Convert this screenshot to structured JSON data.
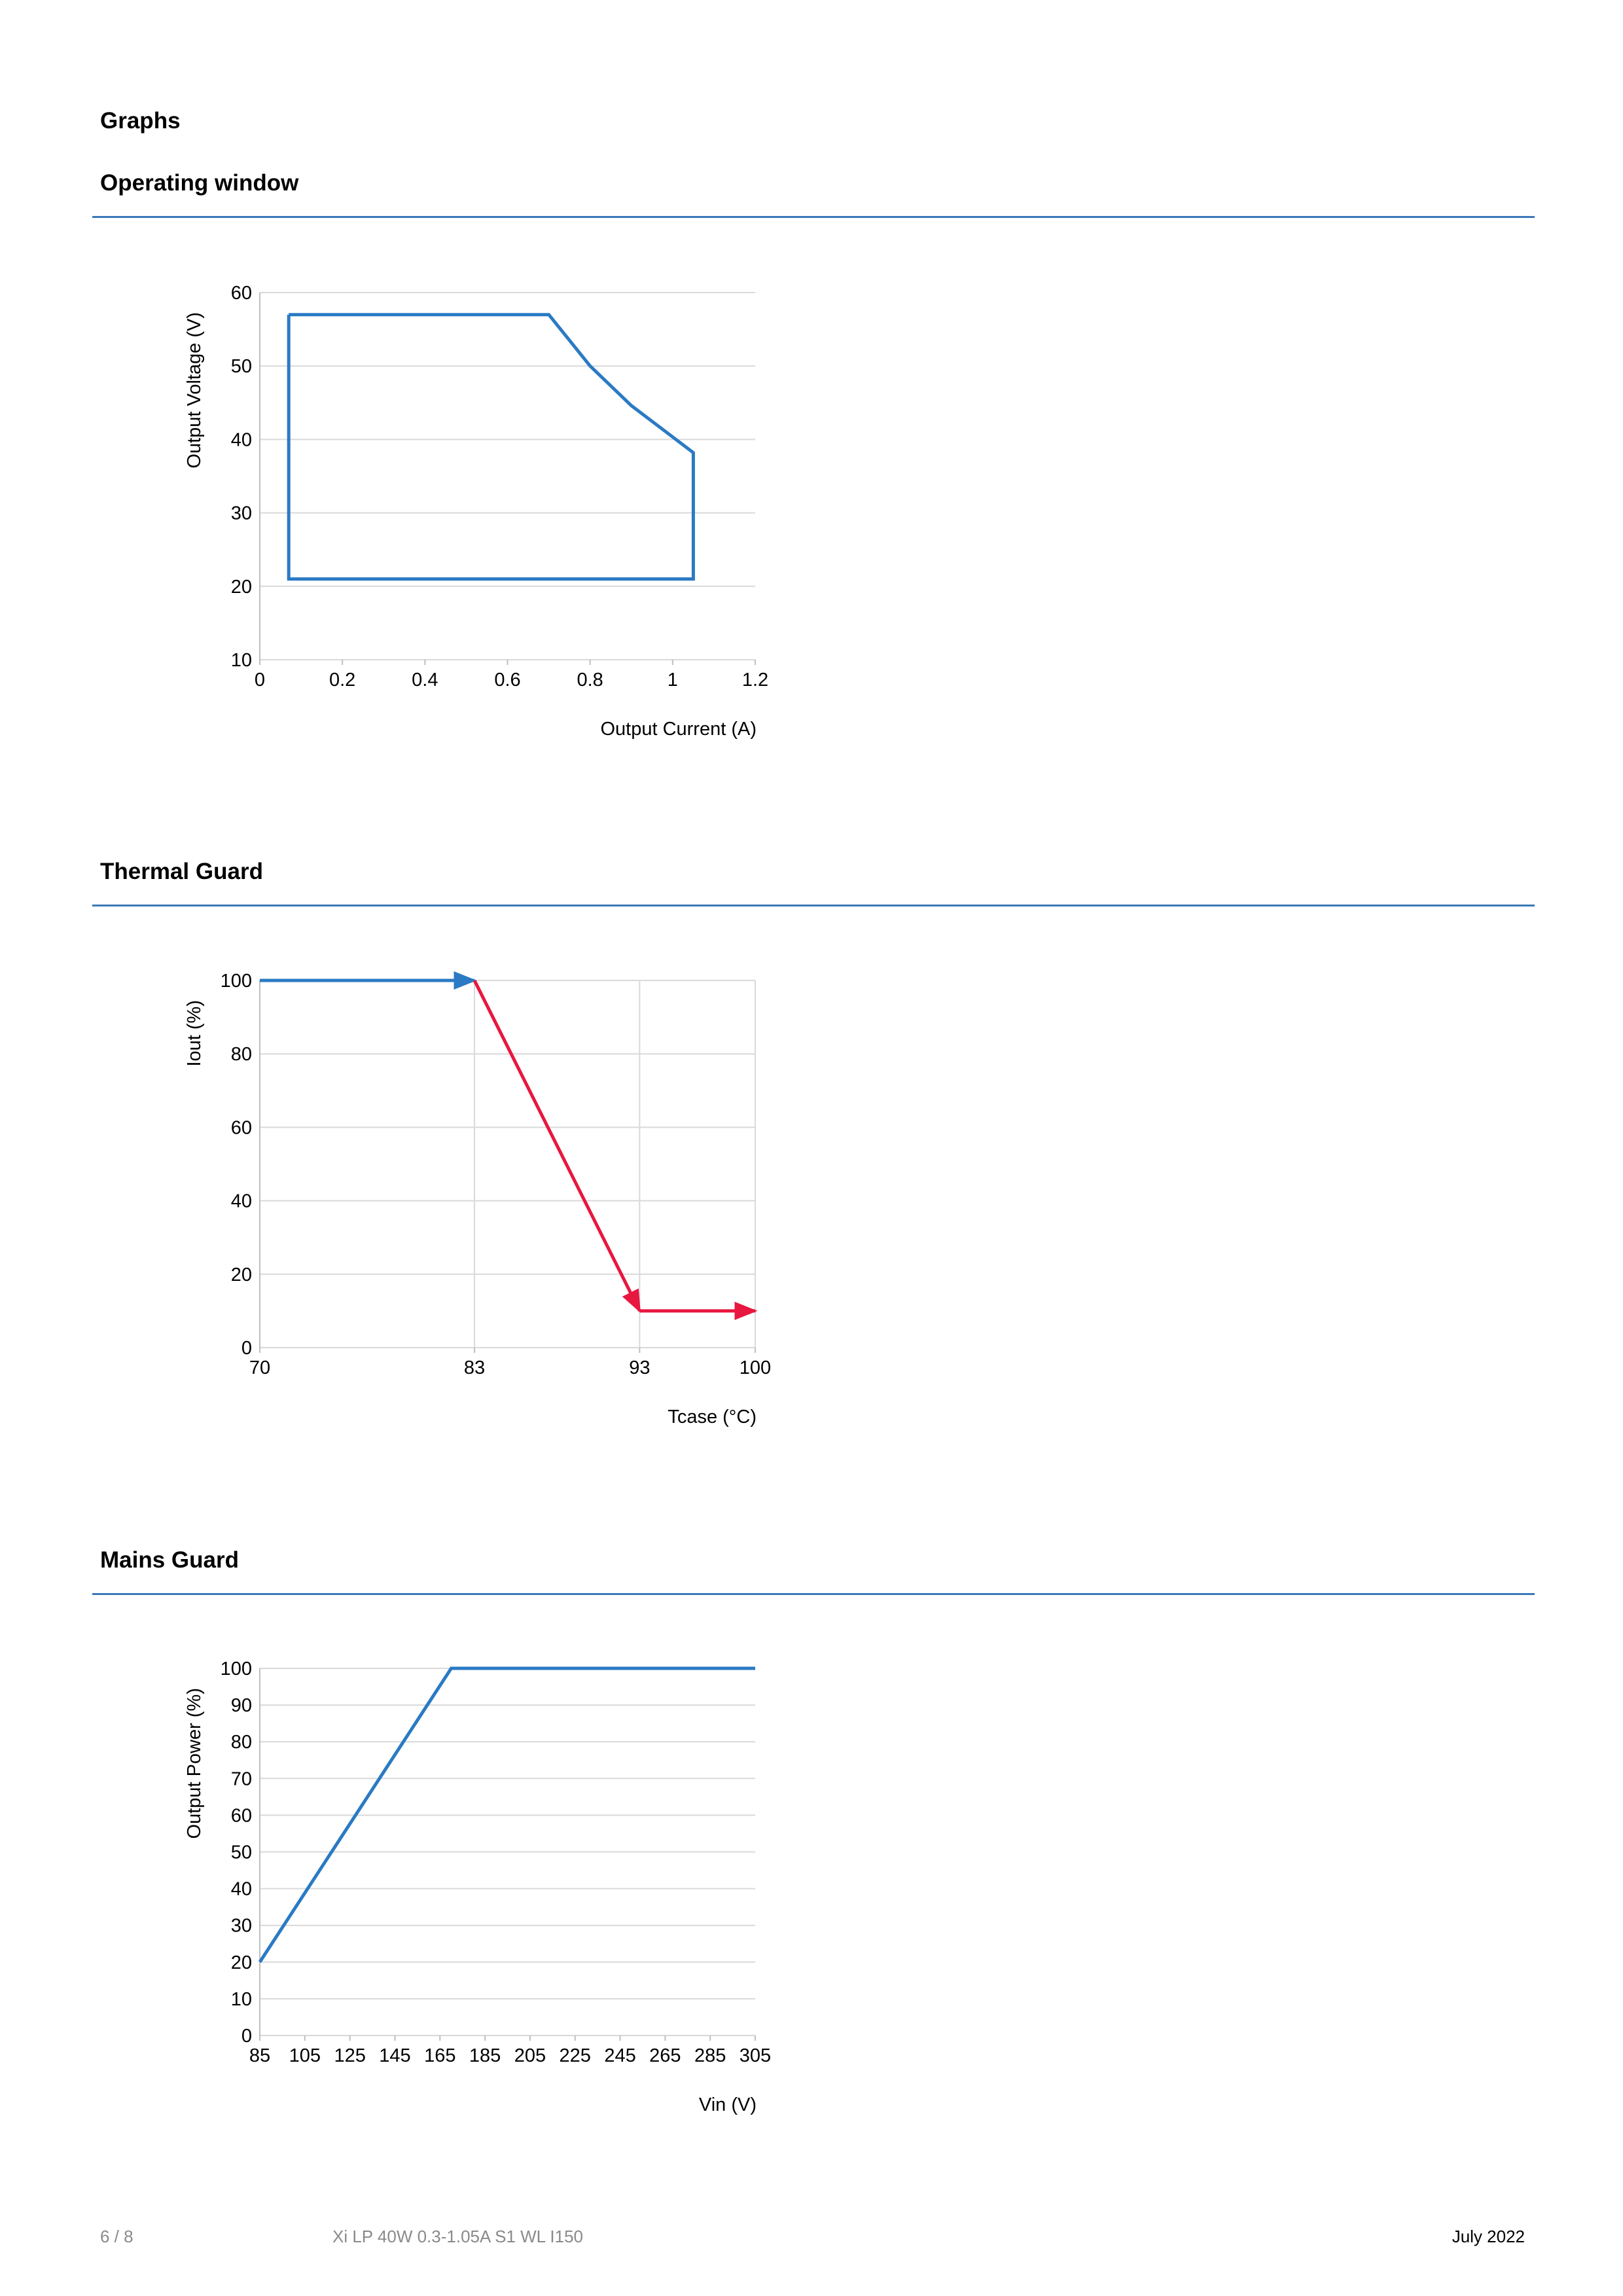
{
  "page": {
    "section_title": "Graphs",
    "footer": {
      "page_number": "6 / 8",
      "product": "Xi LP 40W 0.3-1.05A S1 WL I150",
      "date": "July 2022"
    }
  },
  "colors": {
    "rule": "#3b78b8",
    "blue": "#2a7ac4",
    "red": "#e8173f",
    "grid": "#d9d9d9"
  },
  "chart_data": [
    {
      "type": "line",
      "title": "Operating window",
      "xlabel": "Output Current (A)",
      "ylabel": "Output Voltage (V)",
      "xlim": [
        0,
        1.2
      ],
      "ylim": [
        10,
        60
      ],
      "xticks": [
        0,
        0.2,
        0.4,
        0.6,
        0.8,
        1,
        1.2
      ],
      "xtick_labels": [
        "0",
        "0.2",
        "0.4",
        "0.6",
        "0.8",
        "1",
        "1.2"
      ],
      "yticks": [
        10,
        20,
        30,
        40,
        50,
        60
      ],
      "ytick_labels": [
        "10",
        "20",
        "30",
        "40",
        "50",
        "60"
      ],
      "grid": "horizontal",
      "series": [
        {
          "color": "#2a7ac4",
          "x": [
            0.07,
            0.7,
            0.8,
            0.9,
            1.05,
            1.05,
            0.07,
            0.07
          ],
          "y": [
            57,
            57,
            50,
            44.6,
            38.2,
            21,
            21,
            57
          ]
        }
      ]
    },
    {
      "type": "line",
      "title": "Thermal Guard",
      "xlabel": "Tcase (°C)",
      "ylabel": "Iout (%)",
      "xlim": [
        70,
        100
      ],
      "ylim": [
        0,
        100
      ],
      "xticks": [
        70,
        83,
        93,
        100
      ],
      "xtick_labels": [
        "70",
        "83",
        "93",
        "100"
      ],
      "yticks": [
        0,
        20,
        40,
        60,
        80,
        100
      ],
      "ytick_labels": [
        "0",
        "20",
        "40",
        "60",
        "80",
        "100"
      ],
      "grid": "both",
      "series": [
        {
          "color": "#2a7ac4",
          "x": [
            70,
            83
          ],
          "y": [
            100,
            100
          ],
          "arrow": "end"
        },
        {
          "color": "#e8173f",
          "x": [
            83,
            93
          ],
          "y": [
            100,
            10
          ],
          "arrow": "end"
        },
        {
          "color": "#e8173f",
          "x": [
            93,
            100
          ],
          "y": [
            10,
            10
          ],
          "arrow": "end"
        }
      ]
    },
    {
      "type": "line",
      "title": "Mains Guard",
      "xlabel": "Vin (V)",
      "ylabel": "Output Power (%)",
      "xlim": [
        85,
        305
      ],
      "ylim": [
        0,
        100
      ],
      "xticks": [
        85,
        105,
        125,
        145,
        165,
        185,
        205,
        225,
        245,
        265,
        285,
        305
      ],
      "xtick_labels": [
        "85",
        "105",
        "125",
        "145",
        "165",
        "185",
        "205",
        "225",
        "245",
        "265",
        "285",
        "305"
      ],
      "yticks": [
        0,
        10,
        20,
        30,
        40,
        50,
        60,
        70,
        80,
        90,
        100
      ],
      "ytick_labels": [
        "0",
        "10",
        "20",
        "30",
        "40",
        "50",
        "60",
        "70",
        "80",
        "90",
        "100"
      ],
      "grid": "horizontal",
      "series": [
        {
          "color": "#2a7ac4",
          "x": [
            85,
            170,
            305
          ],
          "y": [
            20,
            100,
            100
          ]
        }
      ]
    }
  ]
}
